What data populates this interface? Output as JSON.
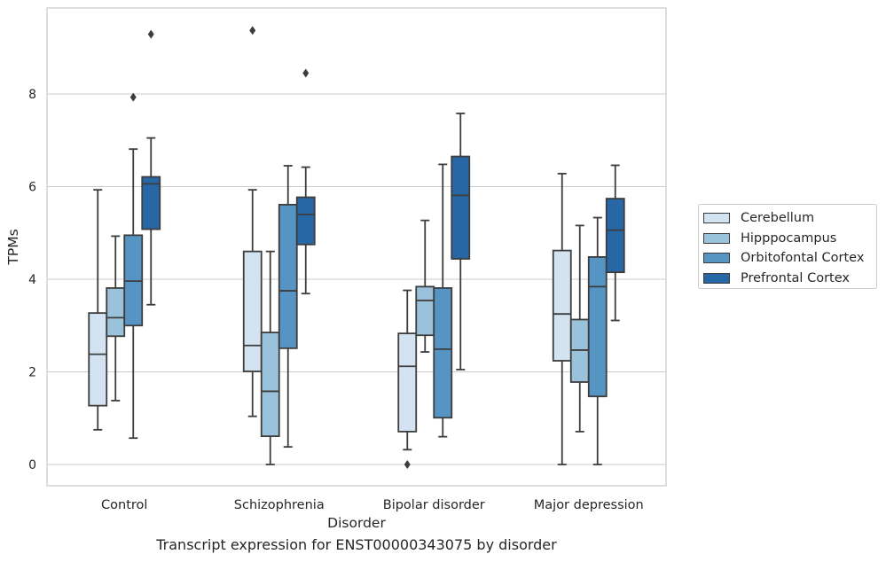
{
  "caption": "Transcript expression for ENST00000343075 by disorder",
  "chart_data": {
    "type": "box",
    "xlabel": "Disorder",
    "ylabel": "TPMs",
    "ylim": [
      -0.45,
      9.9
    ],
    "yticks": [
      0,
      2,
      4,
      6,
      8
    ],
    "grid": "horizontal",
    "legend_position": "right",
    "categories": [
      "Control",
      "Schizophrenia",
      "Bipolar disorder",
      "Major depression"
    ],
    "series": [
      {
        "name": "Cerebellum",
        "color": "#d3e3f1",
        "boxes": [
          {
            "whislo": 0.75,
            "q1": 1.27,
            "med": 2.38,
            "q3": 3.27,
            "whishi": 5.93,
            "fliers": []
          },
          {
            "whislo": 1.04,
            "q1": 2.01,
            "med": 2.57,
            "q3": 4.6,
            "whishi": 5.93,
            "fliers": [
              9.37
            ]
          },
          {
            "whislo": 0.32,
            "q1": 0.71,
            "med": 2.12,
            "q3": 2.83,
            "whishi": 3.76,
            "fliers": [
              0.0
            ]
          },
          {
            "whislo": 0.0,
            "q1": 2.24,
            "med": 3.25,
            "q3": 4.62,
            "whishi": 6.28,
            "fliers": []
          }
        ]
      },
      {
        "name": "Hipppocampus",
        "color": "#9ac2da",
        "boxes": [
          {
            "whislo": 1.38,
            "q1": 2.77,
            "med": 3.17,
            "q3": 3.81,
            "whishi": 4.93,
            "fliers": []
          },
          {
            "whislo": 0.0,
            "q1": 0.61,
            "med": 1.58,
            "q3": 2.85,
            "whishi": 4.6,
            "fliers": []
          },
          {
            "whislo": 2.43,
            "q1": 2.79,
            "med": 3.54,
            "q3": 3.84,
            "whishi": 5.27,
            "fliers": []
          },
          {
            "whislo": 0.71,
            "q1": 1.78,
            "med": 2.47,
            "q3": 3.13,
            "whishi": 5.16,
            "fliers": []
          }
        ]
      },
      {
        "name": "Orbitofontal Cortex",
        "color": "#5695c3",
        "boxes": [
          {
            "whislo": 0.57,
            "q1": 3.0,
            "med": 3.96,
            "q3": 4.95,
            "whishi": 6.81,
            "fliers": [
              7.93
            ]
          },
          {
            "whislo": 0.38,
            "q1": 2.51,
            "med": 3.75,
            "q3": 5.61,
            "whishi": 6.45,
            "fliers": []
          },
          {
            "whislo": 0.6,
            "q1": 1.01,
            "med": 2.49,
            "q3": 3.81,
            "whishi": 6.48,
            "fliers": []
          },
          {
            "whislo": 0.0,
            "q1": 1.47,
            "med": 3.84,
            "q3": 4.48,
            "whishi": 5.33,
            "fliers": []
          }
        ]
      },
      {
        "name": "Prefrontal Cortex",
        "color": "#2867a5",
        "boxes": [
          {
            "whislo": 3.45,
            "q1": 5.08,
            "med": 6.06,
            "q3": 6.21,
            "whishi": 7.05,
            "fliers": [
              9.29
            ]
          },
          {
            "whislo": 3.69,
            "q1": 4.75,
            "med": 5.4,
            "q3": 5.77,
            "whishi": 6.42,
            "fliers": [
              8.45
            ]
          },
          {
            "whislo": 2.05,
            "q1": 4.44,
            "med": 5.81,
            "q3": 6.65,
            "whishi": 7.58,
            "fliers": []
          },
          {
            "whislo": 3.11,
            "q1": 4.15,
            "med": 5.06,
            "q3": 5.74,
            "whishi": 6.46,
            "fliers": []
          }
        ]
      }
    ]
  }
}
